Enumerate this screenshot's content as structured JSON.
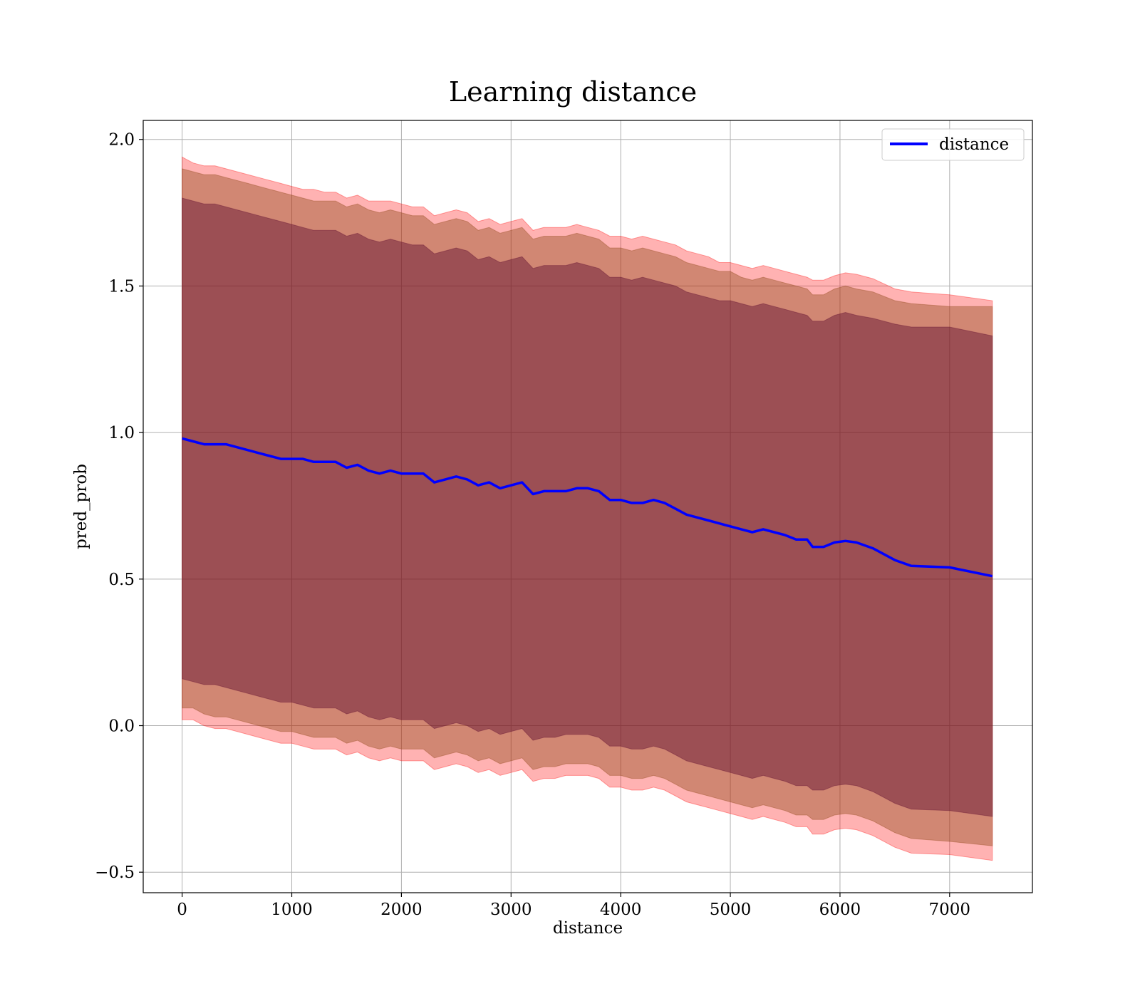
{
  "chart_data": {
    "type": "line",
    "title": "Learning distance",
    "xlabel": "distance",
    "ylabel": "pred_prob",
    "xlim": [
      -355,
      7755
    ],
    "ylim": [
      -0.57,
      2.065
    ],
    "xticks": [
      0,
      1000,
      2000,
      3000,
      4000,
      5000,
      6000,
      7000
    ],
    "xtick_labels": [
      "0",
      "1000",
      "2000",
      "3000",
      "4000",
      "5000",
      "6000",
      "7000"
    ],
    "yticks": [
      -0.5,
      0.0,
      0.5,
      1.0,
      1.5,
      2.0
    ],
    "ytick_labels": [
      "−0.5",
      "0.0",
      "0.5",
      "1.0",
      "1.5",
      "2.0"
    ],
    "grid": true,
    "legend": {
      "position": "top-right",
      "entries": [
        "distance"
      ]
    },
    "colors": {
      "line": "#0000ff",
      "band_outer": "#ff0000",
      "band_middle": "#8b4513",
      "band_inner": "#5c0a2e",
      "grid": "#b0b0b0"
    },
    "x": [
      0,
      100,
      200,
      300,
      400,
      500,
      600,
      700,
      800,
      900,
      1000,
      1100,
      1200,
      1300,
      1400,
      1500,
      1600,
      1700,
      1800,
      1900,
      2000,
      2100,
      2200,
      2300,
      2400,
      2500,
      2600,
      2700,
      2800,
      2900,
      3000,
      3100,
      3200,
      3300,
      3400,
      3500,
      3600,
      3700,
      3800,
      3900,
      4000,
      4100,
      4200,
      4300,
      4400,
      4500,
      4600,
      4700,
      4800,
      4900,
      5000,
      5100,
      5200,
      5300,
      5400,
      5500,
      5600,
      5700,
      5750,
      5850,
      5950,
      6050,
      6150,
      6300,
      6500,
      6650,
      7000,
      7390
    ],
    "series": [
      {
        "name": "distance",
        "values": [
          0.98,
          0.97,
          0.96,
          0.96,
          0.96,
          0.95,
          0.94,
          0.93,
          0.92,
          0.91,
          0.91,
          0.91,
          0.9,
          0.9,
          0.9,
          0.88,
          0.89,
          0.87,
          0.86,
          0.87,
          0.86,
          0.86,
          0.86,
          0.83,
          0.84,
          0.85,
          0.84,
          0.82,
          0.83,
          0.81,
          0.82,
          0.83,
          0.79,
          0.8,
          0.8,
          0.8,
          0.81,
          0.81,
          0.8,
          0.77,
          0.77,
          0.76,
          0.76,
          0.77,
          0.76,
          0.74,
          0.72,
          0.71,
          0.7,
          0.69,
          0.68,
          0.67,
          0.66,
          0.67,
          0.66,
          0.65,
          0.635,
          0.635,
          0.61,
          0.61,
          0.625,
          0.63,
          0.625,
          0.605,
          0.565,
          0.545,
          0.54,
          0.51
        ]
      }
    ],
    "bands": [
      {
        "upper": [
          1.94,
          1.92,
          1.91,
          1.91,
          1.9,
          1.89,
          1.88,
          1.87,
          1.86,
          1.85,
          1.84,
          1.83,
          1.83,
          1.82,
          1.82,
          1.8,
          1.81,
          1.79,
          1.79,
          1.79,
          1.78,
          1.77,
          1.77,
          1.74,
          1.75,
          1.76,
          1.75,
          1.72,
          1.73,
          1.71,
          1.72,
          1.73,
          1.69,
          1.7,
          1.7,
          1.7,
          1.71,
          1.7,
          1.69,
          1.67,
          1.67,
          1.66,
          1.67,
          1.66,
          1.65,
          1.64,
          1.62,
          1.61,
          1.6,
          1.58,
          1.58,
          1.57,
          1.56,
          1.57,
          1.56,
          1.55,
          1.54,
          1.53,
          1.52,
          1.52,
          1.535,
          1.545,
          1.54,
          1.525,
          1.49,
          1.48,
          1.47,
          1.45
        ],
        "lower": [
          0.02,
          0.02,
          0.0,
          -0.01,
          -0.01,
          -0.02,
          -0.03,
          -0.04,
          -0.05,
          -0.06,
          -0.06,
          -0.07,
          -0.08,
          -0.08,
          -0.08,
          -0.1,
          -0.09,
          -0.11,
          -0.12,
          -0.11,
          -0.12,
          -0.12,
          -0.12,
          -0.15,
          -0.14,
          -0.13,
          -0.14,
          -0.16,
          -0.15,
          -0.17,
          -0.16,
          -0.15,
          -0.19,
          -0.18,
          -0.18,
          -0.17,
          -0.17,
          -0.17,
          -0.18,
          -0.21,
          -0.21,
          -0.22,
          -0.22,
          -0.21,
          -0.22,
          -0.24,
          -0.26,
          -0.27,
          -0.28,
          -0.29,
          -0.3,
          -0.31,
          -0.32,
          -0.31,
          -0.32,
          -0.33,
          -0.345,
          -0.345,
          -0.37,
          -0.37,
          -0.355,
          -0.35,
          -0.355,
          -0.375,
          -0.415,
          -0.435,
          -0.44,
          -0.46
        ]
      },
      {
        "upper": [
          1.9,
          1.89,
          1.88,
          1.88,
          1.87,
          1.86,
          1.85,
          1.84,
          1.83,
          1.82,
          1.81,
          1.8,
          1.79,
          1.79,
          1.79,
          1.77,
          1.78,
          1.76,
          1.75,
          1.76,
          1.75,
          1.74,
          1.74,
          1.71,
          1.72,
          1.73,
          1.72,
          1.69,
          1.7,
          1.68,
          1.69,
          1.7,
          1.66,
          1.67,
          1.67,
          1.67,
          1.68,
          1.67,
          1.66,
          1.63,
          1.63,
          1.62,
          1.63,
          1.62,
          1.61,
          1.6,
          1.58,
          1.57,
          1.56,
          1.55,
          1.55,
          1.53,
          1.52,
          1.53,
          1.52,
          1.51,
          1.5,
          1.49,
          1.47,
          1.47,
          1.49,
          1.5,
          1.49,
          1.48,
          1.45,
          1.44,
          1.43,
          1.43
        ],
        "lower": [
          0.06,
          0.06,
          0.04,
          0.03,
          0.03,
          0.02,
          0.01,
          0.0,
          -0.01,
          -0.02,
          -0.02,
          -0.03,
          -0.04,
          -0.04,
          -0.04,
          -0.06,
          -0.05,
          -0.07,
          -0.08,
          -0.07,
          -0.08,
          -0.08,
          -0.08,
          -0.11,
          -0.1,
          -0.09,
          -0.1,
          -0.12,
          -0.11,
          -0.13,
          -0.12,
          -0.11,
          -0.15,
          -0.14,
          -0.14,
          -0.13,
          -0.13,
          -0.13,
          -0.14,
          -0.17,
          -0.17,
          -0.18,
          -0.18,
          -0.17,
          -0.18,
          -0.2,
          -0.22,
          -0.23,
          -0.24,
          -0.25,
          -0.26,
          -0.27,
          -0.28,
          -0.27,
          -0.28,
          -0.29,
          -0.305,
          -0.305,
          -0.32,
          -0.32,
          -0.305,
          -0.3,
          -0.305,
          -0.325,
          -0.365,
          -0.385,
          -0.395,
          -0.41
        ]
      },
      {
        "upper": [
          1.8,
          1.79,
          1.78,
          1.78,
          1.77,
          1.76,
          1.75,
          1.74,
          1.73,
          1.72,
          1.71,
          1.7,
          1.69,
          1.69,
          1.69,
          1.67,
          1.68,
          1.66,
          1.65,
          1.66,
          1.65,
          1.64,
          1.64,
          1.61,
          1.62,
          1.63,
          1.62,
          1.59,
          1.6,
          1.58,
          1.59,
          1.6,
          1.56,
          1.57,
          1.57,
          1.57,
          1.58,
          1.57,
          1.56,
          1.53,
          1.53,
          1.52,
          1.53,
          1.52,
          1.51,
          1.5,
          1.48,
          1.47,
          1.46,
          1.45,
          1.45,
          1.44,
          1.43,
          1.44,
          1.43,
          1.42,
          1.41,
          1.4,
          1.38,
          1.38,
          1.4,
          1.41,
          1.4,
          1.39,
          1.37,
          1.36,
          1.36,
          1.33
        ],
        "lower": [
          0.16,
          0.15,
          0.14,
          0.14,
          0.13,
          0.12,
          0.11,
          0.1,
          0.09,
          0.08,
          0.08,
          0.07,
          0.06,
          0.06,
          0.06,
          0.04,
          0.05,
          0.03,
          0.02,
          0.03,
          0.02,
          0.02,
          0.02,
          -0.01,
          0.0,
          0.01,
          0.0,
          -0.02,
          -0.01,
          -0.03,
          -0.02,
          -0.01,
          -0.05,
          -0.04,
          -0.04,
          -0.03,
          -0.03,
          -0.03,
          -0.04,
          -0.07,
          -0.07,
          -0.08,
          -0.08,
          -0.07,
          -0.08,
          -0.1,
          -0.12,
          -0.13,
          -0.14,
          -0.15,
          -0.16,
          -0.17,
          -0.18,
          -0.17,
          -0.18,
          -0.19,
          -0.205,
          -0.205,
          -0.22,
          -0.22,
          -0.205,
          -0.2,
          -0.205,
          -0.225,
          -0.265,
          -0.285,
          -0.29,
          -0.31
        ]
      }
    ]
  }
}
